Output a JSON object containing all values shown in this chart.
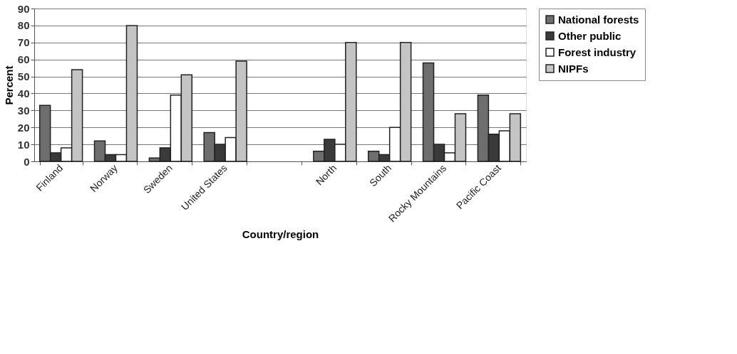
{
  "chart_data": {
    "type": "bar",
    "xlabel": "Country/region",
    "ylabel": "Percent",
    "categories": [
      "Finland",
      "Norway",
      "Sweden",
      "United States",
      null,
      "North",
      "South",
      "Rocky Mountains",
      "Pacific Coast"
    ],
    "series": [
      {
        "name": "National forests",
        "color": "#6e6e6e",
        "values": [
          33,
          12,
          2,
          17,
          null,
          6,
          6,
          58,
          39
        ]
      },
      {
        "name": "Other public",
        "color": "#3a3a3a",
        "values": [
          5,
          4,
          8,
          10,
          null,
          13,
          4,
          10,
          16
        ]
      },
      {
        "name": "Forest industry",
        "color": "#ffffff",
        "values": [
          8,
          4,
          39,
          14,
          null,
          10,
          20,
          5,
          18
        ]
      },
      {
        "name": "NIPFs",
        "color": "#c4c4c4",
        "values": [
          54,
          80,
          51,
          59,
          null,
          70,
          70,
          28,
          28
        ]
      }
    ],
    "ylim": [
      0,
      90
    ],
    "yticks": [
      0,
      10,
      20,
      30,
      40,
      50,
      60,
      70,
      80,
      90
    ],
    "grid": "y",
    "legend": "right"
  }
}
